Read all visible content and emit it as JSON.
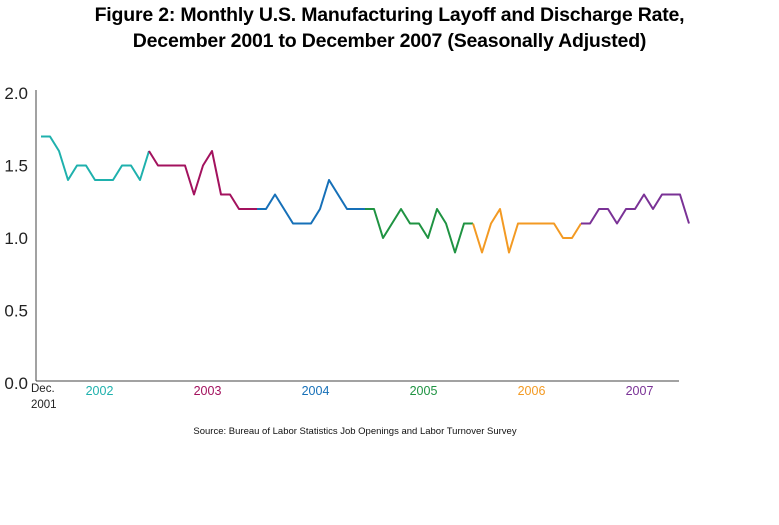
{
  "title": {
    "line1": "Figure 2: Monthly U.S. Manufacturing Layoff and Discharge Rate,",
    "line2": "December 2001 to December 2007 (Seasonally Adjusted)"
  },
  "source": "Source: Bureau of Labor Statistics Job Openings and Labor Turnover Survey",
  "start_label": [
    "Dec.",
    "2001"
  ],
  "colors": {
    "2001": "#e0322b",
    "2002": "#1fb1ad",
    "2003": "#a3125e",
    "2004": "#1670b8",
    "2005": "#1f9342",
    "2006": "#f39a23",
    "2007": "#7a3296"
  },
  "chart_data": {
    "type": "line",
    "ylim": [
      0.0,
      2.0
    ],
    "yticks": [
      "0.0",
      "0.5",
      "1.0",
      "1.5",
      "2.0"
    ],
    "year_labels": [
      "2002",
      "2003",
      "2004",
      "2005",
      "2006",
      "2007"
    ],
    "series": [
      {
        "year": "2001",
        "x": [
          "2001-12"
        ],
        "values": [
          1.7
        ]
      },
      {
        "year": "2002",
        "x": [
          "2002-01",
          "2002-02",
          "2002-03",
          "2002-04",
          "2002-05",
          "2002-06",
          "2002-07",
          "2002-08",
          "2002-09",
          "2002-10",
          "2002-11",
          "2002-12"
        ],
        "values": [
          1.7,
          1.6,
          1.4,
          1.5,
          1.5,
          1.4,
          1.4,
          1.4,
          1.5,
          1.5,
          1.4,
          1.6
        ]
      },
      {
        "year": "2003",
        "x": [
          "2003-01",
          "2003-02",
          "2003-03",
          "2003-04",
          "2003-05",
          "2003-06",
          "2003-07",
          "2003-08",
          "2003-09",
          "2003-10",
          "2003-11",
          "2003-12"
        ],
        "values": [
          1.5,
          1.5,
          1.5,
          1.5,
          1.3,
          1.5,
          1.6,
          1.3,
          1.3,
          1.2,
          1.2,
          1.2
        ]
      },
      {
        "year": "2004",
        "x": [
          "2004-01",
          "2004-02",
          "2004-03",
          "2004-04",
          "2004-05",
          "2004-06",
          "2004-07",
          "2004-08",
          "2004-09",
          "2004-10",
          "2004-11",
          "2004-12"
        ],
        "values": [
          1.2,
          1.3,
          1.2,
          1.1,
          1.1,
          1.1,
          1.2,
          1.4,
          1.3,
          1.2,
          1.2,
          1.2
        ]
      },
      {
        "year": "2005",
        "x": [
          "2005-01",
          "2005-02",
          "2005-03",
          "2005-04",
          "2005-05",
          "2005-06",
          "2005-07",
          "2005-08",
          "2005-09",
          "2005-10",
          "2005-11",
          "2005-12"
        ],
        "values": [
          1.2,
          1.0,
          1.1,
          1.2,
          1.1,
          1.1,
          1.0,
          1.2,
          1.1,
          0.9,
          1.1,
          1.1
        ]
      },
      {
        "year": "2006",
        "x": [
          "2006-01",
          "2006-02",
          "2006-03",
          "2006-04",
          "2006-05",
          "2006-06",
          "2006-07",
          "2006-08",
          "2006-09",
          "2006-10",
          "2006-11",
          "2006-12"
        ],
        "values": [
          0.9,
          1.1,
          1.2,
          0.9,
          1.1,
          1.1,
          1.1,
          1.1,
          1.1,
          1.0,
          1.0,
          1.1
        ]
      },
      {
        "year": "2007",
        "x": [
          "2007-01",
          "2007-02",
          "2007-03",
          "2007-04",
          "2007-05",
          "2007-06",
          "2007-07",
          "2007-08",
          "2007-09",
          "2007-10",
          "2007-11",
          "2007-12"
        ],
        "values": [
          1.1,
          1.2,
          1.2,
          1.1,
          1.2,
          1.2,
          1.3,
          1.2,
          1.3,
          1.3,
          1.3,
          1.1
        ]
      }
    ]
  }
}
